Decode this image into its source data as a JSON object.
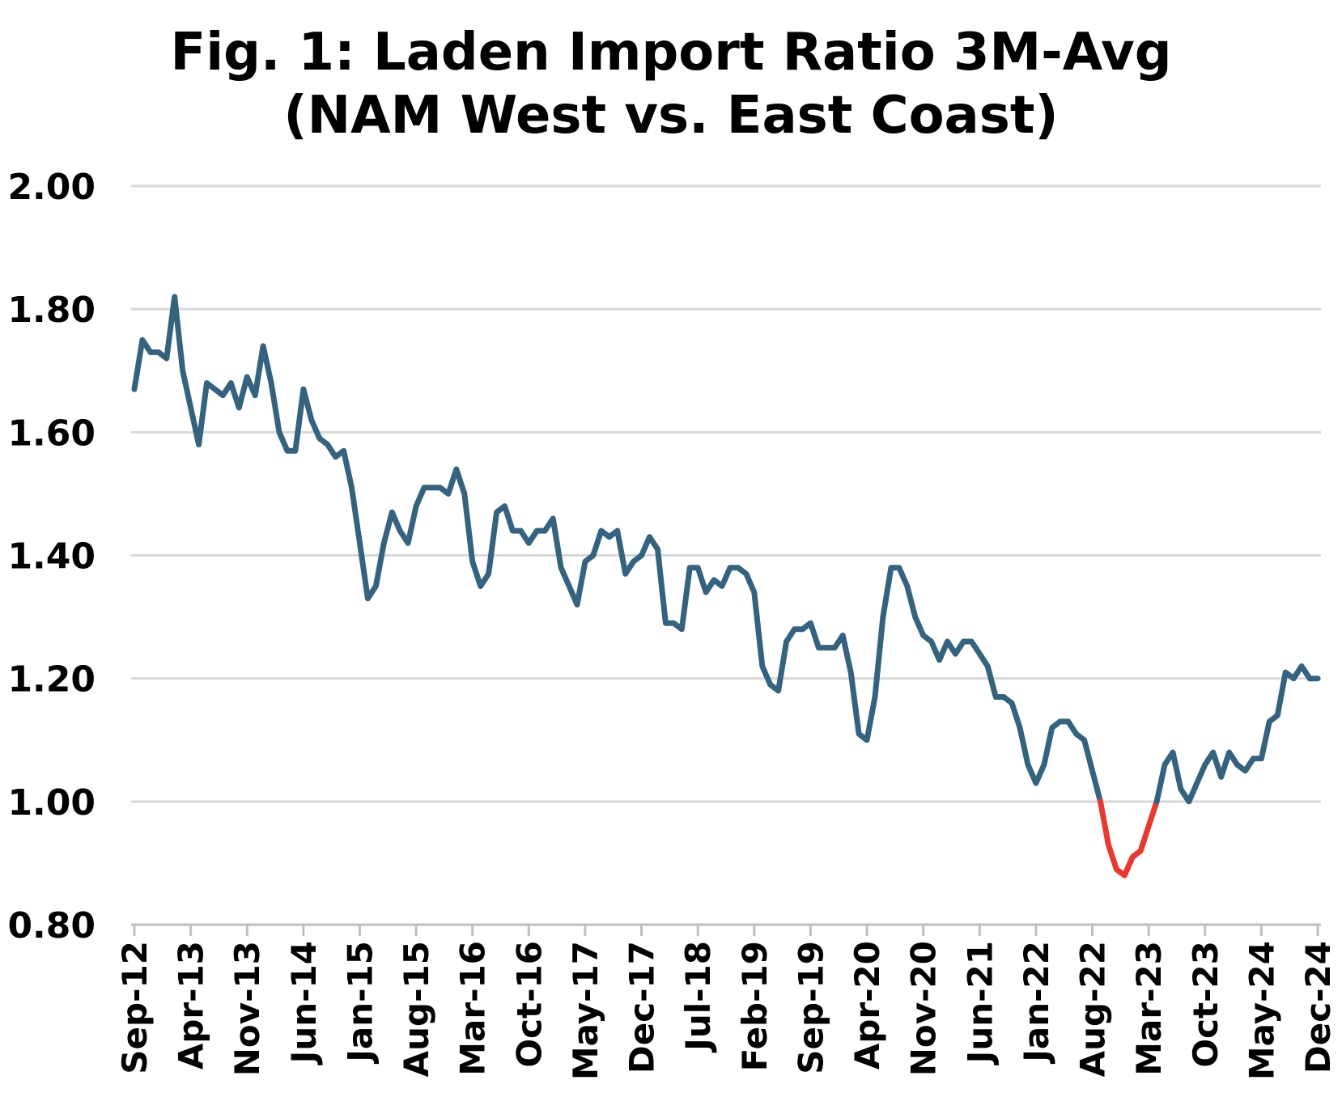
{
  "chart_data": {
    "type": "line",
    "title_line1": "Fig. 1: Laden Import Ratio 3M-Avg",
    "title_line2": "(NAM West vs. East Coast)",
    "xlabel": "",
    "ylabel": "",
    "ylim": [
      0.8,
      2.0
    ],
    "yticks": [
      "0.80",
      "1.00",
      "1.20",
      "1.40",
      "1.60",
      "1.80",
      "2.00"
    ],
    "ytick_values": [
      0.8,
      1.0,
      1.2,
      1.4,
      1.6,
      1.8,
      2.0
    ],
    "threshold": 1.0,
    "colors": {
      "line": "#35637f",
      "below_threshold": "#e8382f",
      "grid": "#d9d9d9",
      "axis": "#bfbfbf"
    },
    "grid": true,
    "xtick_labels": [
      "Sep-12",
      "Apr-13",
      "Nov-13",
      "Jun-14",
      "Jan-15",
      "Aug-15",
      "Mar-16",
      "Oct-16",
      "May-17",
      "Dec-17",
      "Jul-18",
      "Feb-19",
      "Sep-19",
      "Apr-20",
      "Nov-20",
      "Jun-21",
      "Jan-22",
      "Aug-22",
      "Mar-23",
      "Oct-23",
      "May-24",
      "Dec-24"
    ],
    "series": [
      {
        "name": "Laden Import Ratio 3M-Avg",
        "start": "Sep-12",
        "frequency": "monthly",
        "values": [
          1.67,
          1.75,
          1.73,
          1.73,
          1.72,
          1.82,
          1.7,
          1.64,
          1.58,
          1.68,
          1.67,
          1.66,
          1.68,
          1.64,
          1.69,
          1.66,
          1.74,
          1.68,
          1.6,
          1.57,
          1.57,
          1.67,
          1.62,
          1.59,
          1.58,
          1.56,
          1.57,
          1.51,
          1.42,
          1.33,
          1.35,
          1.42,
          1.47,
          1.44,
          1.42,
          1.48,
          1.51,
          1.51,
          1.51,
          1.5,
          1.54,
          1.5,
          1.39,
          1.35,
          1.37,
          1.47,
          1.48,
          1.44,
          1.44,
          1.42,
          1.44,
          1.44,
          1.46,
          1.38,
          1.35,
          1.32,
          1.39,
          1.4,
          1.44,
          1.43,
          1.44,
          1.37,
          1.39,
          1.4,
          1.43,
          1.41,
          1.29,
          1.29,
          1.28,
          1.38,
          1.38,
          1.34,
          1.36,
          1.35,
          1.38,
          1.38,
          1.37,
          1.34,
          1.22,
          1.19,
          1.18,
          1.26,
          1.28,
          1.28,
          1.29,
          1.25,
          1.25,
          1.25,
          1.27,
          1.21,
          1.11,
          1.1,
          1.17,
          1.3,
          1.38,
          1.38,
          1.35,
          1.3,
          1.27,
          1.26,
          1.23,
          1.26,
          1.24,
          1.26,
          1.26,
          1.24,
          1.22,
          1.17,
          1.17,
          1.16,
          1.12,
          1.06,
          1.03,
          1.06,
          1.12,
          1.13,
          1.13,
          1.11,
          1.1,
          1.05,
          1.0,
          0.93,
          0.89,
          0.88,
          0.91,
          0.92,
          0.96,
          1.0,
          1.06,
          1.08,
          1.02,
          1.0,
          1.03,
          1.06,
          1.08,
          1.04,
          1.08,
          1.06,
          1.05,
          1.07,
          1.07,
          1.13,
          1.14,
          1.21,
          1.2,
          1.22,
          1.2,
          1.2
        ]
      }
    ]
  }
}
